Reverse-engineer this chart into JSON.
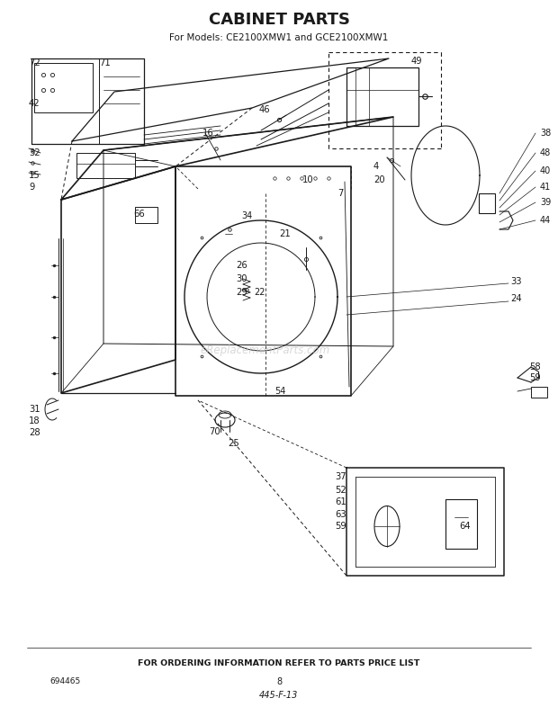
{
  "title": "CABINET PARTS",
  "subtitle": "For Models: CE2100XMW1 and GCE2100XMW1",
  "footer_text": "FOR ORDERING INFORMATION REFER TO PARTS PRICE LIST",
  "part_number": "694465",
  "page_number": "8",
  "diagram_ref": "445-F-13",
  "bg_color": "#ffffff",
  "line_color": "#1a1a1a",
  "watermark": "eReplacementParts.com"
}
